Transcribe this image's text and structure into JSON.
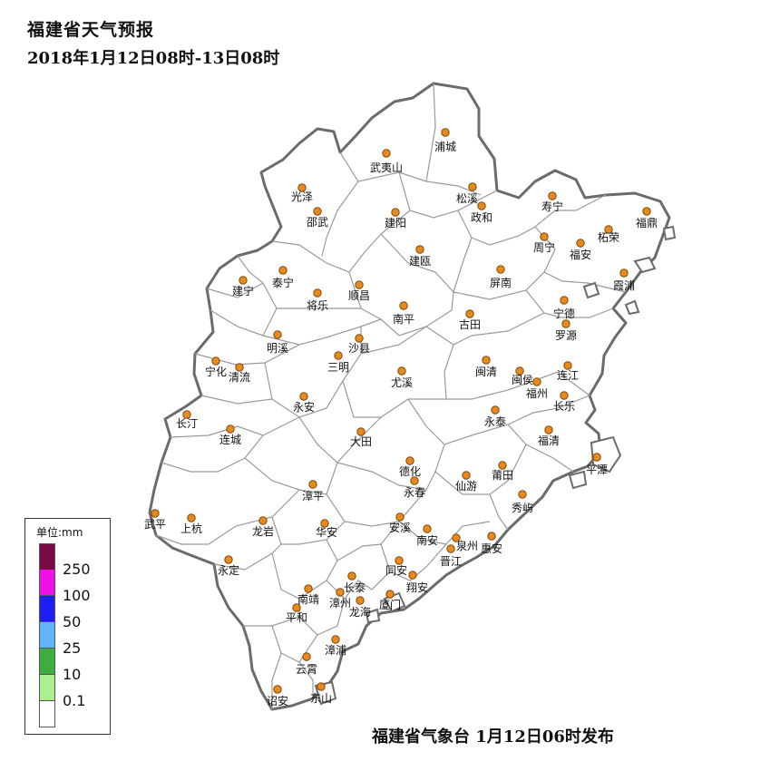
{
  "title": "福建省天气预报",
  "subtitle": "2018年1月12日08时-13日08时",
  "publisher": "福建省气象台  1月12日06时发布",
  "colors": {
    "station_fill": "#e8891c",
    "station_stroke": "#7a4a10",
    "land_fill": "#ffffff",
    "province_border": "#6b6b6b",
    "county_border": "#9a9a9a"
  },
  "legend": {
    "title": "单位:mm",
    "levels": [
      {
        "label": "",
        "color": "#7a0a45"
      },
      {
        "label": "250",
        "color": "#ee10e6"
      },
      {
        "label": "100",
        "color": "#1e1ef0"
      },
      {
        "label": "50",
        "color": "#62b4f5"
      },
      {
        "label": "25",
        "color": "#3eac3e"
      },
      {
        "label": "10",
        "color": "#aaf090"
      },
      {
        "label": "0.1",
        "color": "#ffffff"
      }
    ]
  },
  "stations": [
    {
      "name": "浦城"
    },
    {
      "name": "武夷山"
    },
    {
      "name": "光泽"
    },
    {
      "name": "松溪"
    },
    {
      "name": "政和"
    },
    {
      "name": "邵武"
    },
    {
      "name": "建阳"
    },
    {
      "name": "寿宁"
    },
    {
      "name": "福鼎"
    },
    {
      "name": "柘荣"
    },
    {
      "name": "周宁"
    },
    {
      "name": "福安"
    },
    {
      "name": "霞浦"
    },
    {
      "name": "建瓯"
    },
    {
      "name": "建宁"
    },
    {
      "name": "泰宁"
    },
    {
      "name": "顺昌"
    },
    {
      "name": "将乐"
    },
    {
      "name": "屏南"
    },
    {
      "name": "宁德"
    },
    {
      "name": "南平"
    },
    {
      "name": "古田"
    },
    {
      "name": "罗源"
    },
    {
      "name": "明溪"
    },
    {
      "name": "沙县"
    },
    {
      "name": "宁化"
    },
    {
      "name": "清流"
    },
    {
      "name": "三明"
    },
    {
      "name": "闽清"
    },
    {
      "name": "闽侯"
    },
    {
      "name": "连江"
    },
    {
      "name": "福州"
    },
    {
      "name": "尤溪"
    },
    {
      "name": "长乐"
    },
    {
      "name": "永安"
    },
    {
      "name": "长汀"
    },
    {
      "name": "永泰"
    },
    {
      "name": "连城"
    },
    {
      "name": "大田"
    },
    {
      "name": "福清"
    },
    {
      "name": "平潭"
    },
    {
      "name": "德化"
    },
    {
      "name": "莆田"
    },
    {
      "name": "仙游"
    },
    {
      "name": "永春"
    },
    {
      "name": "漳平"
    },
    {
      "name": "秀屿"
    },
    {
      "name": "武平"
    },
    {
      "name": "上杭"
    },
    {
      "name": "龙岩"
    },
    {
      "name": "华安"
    },
    {
      "name": "安溪"
    },
    {
      "name": "南安"
    },
    {
      "name": "泉州"
    },
    {
      "name": "惠安"
    },
    {
      "name": "晋江"
    },
    {
      "name": "永定"
    },
    {
      "name": "同安"
    },
    {
      "name": "翔安"
    },
    {
      "name": "长泰"
    },
    {
      "name": "南靖"
    },
    {
      "name": "漳州"
    },
    {
      "name": "龙海"
    },
    {
      "name": "厦门"
    },
    {
      "name": "平和"
    },
    {
      "name": "漳浦"
    },
    {
      "name": "云霄"
    },
    {
      "name": "诏安"
    },
    {
      "name": "东山"
    }
  ]
}
